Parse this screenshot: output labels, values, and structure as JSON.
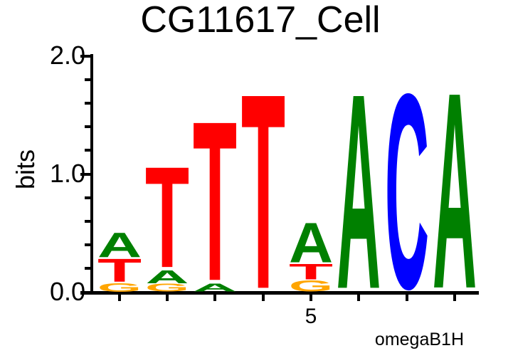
{
  "page": {
    "background": "#ffffff"
  },
  "chart_data": {
    "type": "sequence_logo",
    "title": "CG11617_Cell",
    "ylabel": "bits",
    "source_label": "omegaB1H",
    "ylim": [
      0.0,
      2.0
    ],
    "ytick_labels": [
      "0.0",
      "1.0",
      "2.0"
    ],
    "y_minor_tick_step": 0.2,
    "xtick": {
      "position": 5,
      "label": "5"
    },
    "num_positions": 8,
    "stack_order": "bottom_to_top",
    "letter_colors": {
      "A": "#008000",
      "C": "#0000ff",
      "G": "#ffa500",
      "T": "#ff0000"
    },
    "positions": [
      {
        "index": 1,
        "stack": [
          {
            "letter": "G",
            "bits": 0.08
          },
          {
            "letter": "T",
            "bits": 0.21
          },
          {
            "letter": "A",
            "bits": 0.22
          }
        ]
      },
      {
        "index": 2,
        "stack": [
          {
            "letter": "G",
            "bits": 0.07
          },
          {
            "letter": "A",
            "bits": 0.12
          },
          {
            "letter": "T",
            "bits": 0.91
          }
        ]
      },
      {
        "index": 3,
        "stack": [
          {
            "letter": "A",
            "bits": 0.07
          },
          {
            "letter": "T",
            "bits": 1.44
          }
        ]
      },
      {
        "index": 4,
        "stack": [
          {
            "letter": "T",
            "bits": 1.76
          }
        ]
      },
      {
        "index": 5,
        "stack": [
          {
            "letter": "G",
            "bits": 0.1
          },
          {
            "letter": "T",
            "bits": 0.14
          },
          {
            "letter": "A",
            "bits": 0.36
          }
        ]
      },
      {
        "index": 6,
        "stack": [
          {
            "letter": "A",
            "bits": 1.76
          }
        ]
      },
      {
        "index": 7,
        "stack": [
          {
            "letter": "C",
            "bits": 1.76
          }
        ]
      },
      {
        "index": 8,
        "stack": [
          {
            "letter": "A",
            "bits": 1.77
          }
        ]
      }
    ]
  }
}
